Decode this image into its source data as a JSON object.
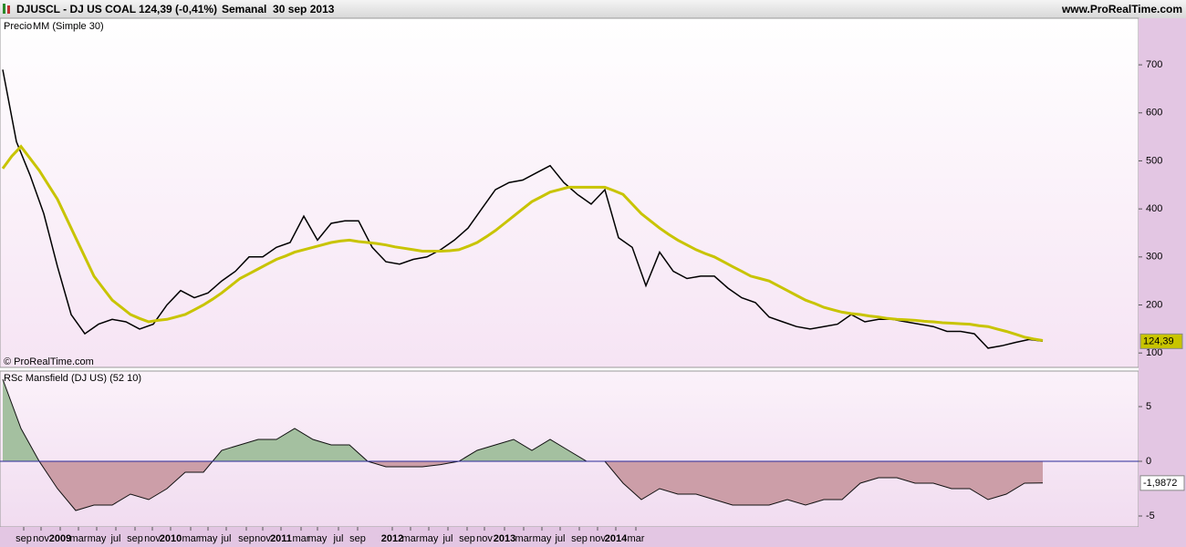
{
  "header": {
    "symbol": "DJUSCL - DJ US COAL",
    "price": "124,39 (-0,41%)",
    "period": "Semanal  30 sep 2013",
    "site": "www.ProRealTime.com",
    "copyright": "© ProRealTime.com"
  },
  "x_axis_labels": [
    "sep",
    "nov",
    "2009",
    "mar",
    "may",
    "jul",
    "sep",
    "nov",
    "2010",
    "mar",
    "may",
    "jul",
    "sep",
    "nov",
    "2011",
    "mar",
    "may",
    "jul",
    "sep",
    "2012",
    "mar",
    "may",
    "jul",
    "sep",
    "nov",
    "2013",
    "mar",
    "may",
    "jul",
    "sep",
    "nov",
    "2014",
    "mar"
  ],
  "chart_data": [
    {
      "type": "line",
      "ylim": [
        70,
        797
      ],
      "yticks": [
        100,
        200,
        300,
        400,
        500,
        600,
        700
      ],
      "last_value_label": "124,39",
      "series": [
        {
          "name": "Precio",
          "color": "#000000",
          "values": [
            690,
            540,
            470,
            390,
            280,
            180,
            140,
            160,
            170,
            165,
            150,
            160,
            200,
            230,
            215,
            225,
            250,
            270,
            300,
            300,
            320,
            330,
            385,
            335,
            370,
            375,
            375,
            320,
            290,
            285,
            295,
            300,
            315,
            335,
            360,
            400,
            440,
            455,
            460,
            475,
            490,
            455,
            430,
            410,
            440,
            340,
            320,
            240,
            310,
            270,
            255,
            260,
            260,
            235,
            215,
            205,
            175,
            165,
            155,
            150,
            155,
            160,
            180,
            165,
            170,
            170,
            165,
            160,
            155,
            145,
            145,
            140,
            110,
            115,
            122,
            128,
            124.39
          ]
        },
        {
          "name": "MM (Simple 30)",
          "color": "#c8c400",
          "values": [
            484,
            510,
            530,
            505,
            480,
            450,
            420,
            380,
            340,
            300,
            260,
            235,
            210,
            195,
            180,
            172,
            165,
            168,
            170,
            175,
            180,
            190,
            200,
            212,
            225,
            240,
            255,
            265,
            275,
            285,
            295,
            302,
            310,
            315,
            320,
            325,
            330,
            333,
            335,
            332,
            330,
            328,
            325,
            321,
            318,
            315,
            312,
            312,
            312,
            313,
            315,
            322,
            330,
            342,
            355,
            370,
            385,
            400,
            415,
            425,
            435,
            440,
            445,
            445,
            445,
            445,
            445,
            438,
            430,
            410,
            390,
            375,
            360,
            347,
            335,
            325,
            315,
            307,
            300,
            290,
            280,
            270,
            260,
            255,
            250,
            240,
            230,
            220,
            210,
            203,
            195,
            190,
            185,
            182,
            180,
            177,
            175,
            172,
            170,
            169,
            168,
            166,
            165,
            163,
            162,
            161,
            160,
            157,
            155,
            150,
            145,
            139,
            133,
            129,
            126
          ]
        }
      ]
    },
    {
      "type": "area",
      "title": "RSc Mansfield (DJ US) (52 10)",
      "ylim": [
        -6,
        8.25
      ],
      "yticks": [
        -5,
        0,
        5
      ],
      "last_value_label": "-1,9872",
      "colors": {
        "positive": "#a4c0a0",
        "negative": "#cc9ea8"
      },
      "values": [
        7.5,
        3,
        0,
        -2.5,
        -4.5,
        -4,
        -4,
        -3,
        -3.5,
        -2.5,
        -1,
        -1,
        1,
        1.5,
        2,
        2,
        3,
        2,
        1.5,
        1.5,
        0,
        -0.5,
        -0.5,
        -0.5,
        -0.3,
        0,
        1,
        1.5,
        2,
        1,
        2,
        1,
        0,
        0,
        -2,
        -3.5,
        -2.5,
        -3,
        -3,
        -3.5,
        -4,
        -4,
        -4,
        -3.5,
        -4,
        -3.5,
        -3.5,
        -2,
        -1.5,
        -1.5,
        -2,
        -2,
        -2.5,
        -2.5,
        -3.5,
        -3,
        -2,
        -1.9872
      ]
    }
  ]
}
